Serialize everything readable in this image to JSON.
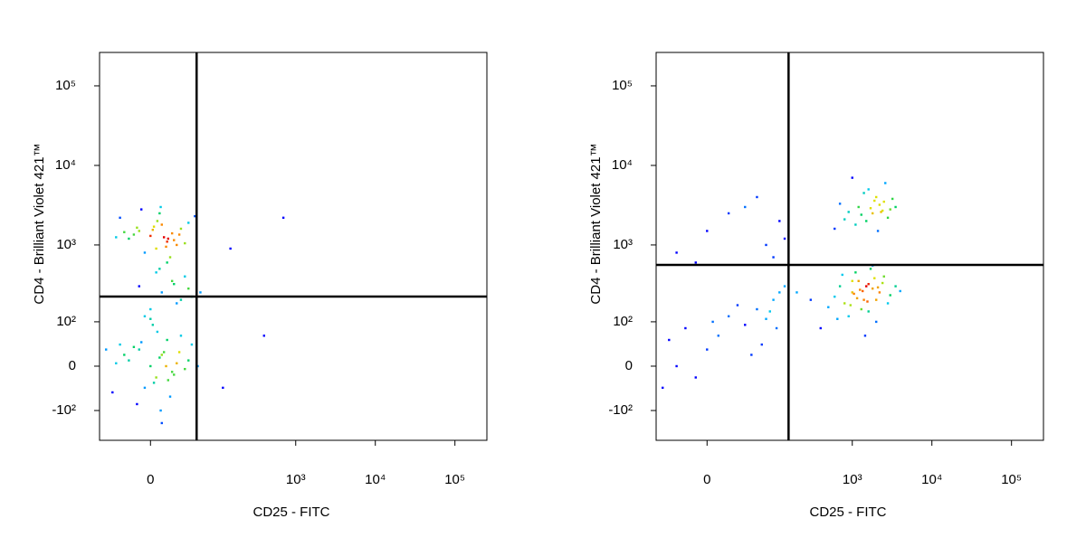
{
  "chart_data": [
    {
      "type": "scatter",
      "scale": "biexponential",
      "x_label": "CD25 - FITC",
      "y_label": "CD4 - Brilliant Violet 421™",
      "xlim": [
        -62,
        252000
      ],
      "ylim": [
        -253,
        263000
      ],
      "xticks": [
        0,
        {
          "value": 1000,
          "label": "10³"
        },
        {
          "value": 10000,
          "label": "10⁴"
        },
        {
          "value": 100000,
          "label": "10⁵"
        }
      ],
      "yticks": [
        {
          "value": -100,
          "label": "-10²"
        },
        0,
        {
          "value": 100,
          "label": "10²"
        },
        {
          "value": 1000,
          "label": "10³"
        },
        {
          "value": 10000,
          "label": "10⁴"
        },
        {
          "value": 100000,
          "label": "10⁵"
        }
      ],
      "gates": {
        "x": 53,
        "y": 221,
        "color": "#000000"
      },
      "x": [
        -20,
        -10,
        0,
        5,
        10,
        15,
        20,
        -30,
        25,
        30,
        -5,
        8,
        12,
        3,
        -15,
        40,
        18,
        -25,
        6,
        22,
        -8,
        35,
        2,
        14,
        -12,
        28,
        9,
        -35,
        50,
        16,
        0,
        10,
        20,
        30,
        -10,
        5,
        25,
        40,
        15,
        35,
        -5,
        45,
        8,
        22,
        60,
        -20,
        -10,
        0,
        5,
        10,
        15,
        20,
        -30,
        25,
        30,
        -5,
        8,
        12,
        3,
        -15,
        40,
        18,
        -25,
        6,
        22,
        -8,
        35,
        2,
        14,
        -12,
        28,
        9,
        -35,
        -50,
        16,
        45,
        -40,
        0,
        10,
        55,
        700,
        400,
        150,
        120
      ],
      "y": [
        1200,
        1500,
        1300,
        900,
        1800,
        1100,
        1400,
        2200,
        1000,
        1600,
        800,
        2500,
        1250,
        1700,
        1350,
        1900,
        700,
        1450,
        2000,
        1150,
        2800,
        1050,
        1550,
        950,
        1650,
        1350,
        3000,
        1250,
        2300,
        1200,
        150,
        250,
        350,
        200,
        300,
        450,
        180,
        280,
        600,
        400,
        120,
        220,
        500,
        320,
        250,
        10,
        30,
        0,
        -20,
        20,
        50,
        -10,
        40,
        5,
        60,
        -40,
        15,
        25,
        -30,
        35,
        10,
        -60,
        20,
        70,
        -15,
        45,
        -5,
        90,
        0,
        -80,
        25,
        -100,
        5,
        30,
        -25,
        40,
        -50,
        110,
        -150,
        0,
        2200,
        60,
        900,
        -40
      ]
    },
    {
      "type": "scatter",
      "scale": "biexponential",
      "x_label": "CD25 - FITC",
      "y_label": "CD4 - Brilliant Violet 421™",
      "xlim": [
        -62,
        252000
      ],
      "ylim": [
        -253,
        263000
      ],
      "xticks": [
        0,
        {
          "value": 1000,
          "label": "10³"
        },
        {
          "value": 10000,
          "label": "10⁴"
        },
        {
          "value": 100000,
          "label": "10⁵"
        }
      ],
      "yticks": [
        {
          "value": -100,
          "label": "-10²"
        },
        0,
        {
          "value": 100,
          "label": "10²"
        },
        {
          "value": 1000,
          "label": "10³"
        },
        {
          "value": 10000,
          "label": "10⁴"
        },
        {
          "value": 100000,
          "label": "10⁵"
        }
      ],
      "gates": {
        "x": 157,
        "y": 560,
        "color": "#000000"
      },
      "x": [
        1200,
        1800,
        2500,
        1500,
        2000,
        3000,
        900,
        2200,
        1600,
        2800,
        1100,
        1900,
        2400,
        700,
        3500,
        1400,
        2100,
        2600,
        1300,
        1700,
        800,
        3200,
        600,
        2300,
        1000,
        1000,
        1500,
        2000,
        1200,
        800,
        1800,
        2500,
        600,
        1300,
        1600,
        900,
        2200,
        1100,
        1400,
        700,
        3000,
        1700,
        500,
        2000,
        1250,
        3500,
        400,
        1900,
        1050,
        2800,
        1350,
        750,
        1600,
        300,
        2400,
        1150,
        1800,
        950,
        4000,
        200,
        1450,
        2100,
        1000,
        650,
        1550,
        -40,
        -20,
        0,
        20,
        40,
        60,
        80,
        100,
        -30,
        10,
        50,
        90,
        120,
        -10,
        30,
        70,
        5,
        -50,
        110,
        140,
        -30,
        0,
        40,
        80,
        120,
        -10,
        60,
        20,
        100,
        140
      ],
      "y": [
        3000,
        2500,
        3500,
        2000,
        4000,
        2800,
        2600,
        3200,
        5000,
        2200,
        1800,
        3600,
        2700,
        3300,
        3000,
        4500,
        1500,
        6000,
        2400,
        2900,
        2100,
        3800,
        1600,
        2600,
        7000,
        250,
        300,
        200,
        350,
        180,
        280,
        400,
        220,
        150,
        320,
        120,
        250,
        450,
        200,
        300,
        230,
        500,
        160,
        100,
        270,
        300,
        80,
        380,
        240,
        180,
        260,
        420,
        140,
        200,
        330,
        210,
        550,
        170,
        260,
        250,
        60,
        290,
        350,
        110,
        190,
        50,
        80,
        30,
        120,
        90,
        150,
        110,
        200,
        0,
        60,
        20,
        140,
        250,
        -20,
        170,
        40,
        100,
        -40,
        80,
        300,
        800,
        1500,
        3000,
        1000,
        2000,
        600,
        4000,
        2500,
        700,
        1200
      ]
    }
  ]
}
